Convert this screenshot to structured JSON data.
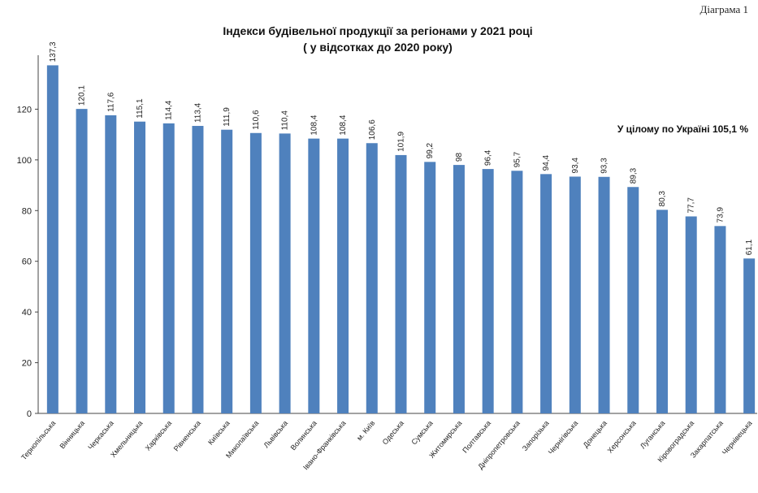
{
  "diagram_label": "Діаграма 1",
  "title_line1": "Індекси будівельної продукції за регіонами  у  2021 році",
  "title_line2": "( у відсотках до 2020 року)",
  "note": "У цілому по Україні  105,1 %",
  "colors": {
    "bar": "#4f81bd",
    "axis": "#444444"
  },
  "chart_data": {
    "type": "bar",
    "title": "Індекси будівельної продукції за регіонами  у  2021 році",
    "subtitle": "( у відсотках до 2020 року)",
    "ylim": [
      0,
      140
    ],
    "yticks": [
      0,
      20,
      40,
      60,
      80,
      100,
      120
    ],
    "grid": false,
    "categories": [
      "Тернопільська",
      "Вінницька",
      "Черкаська",
      "Хмельницька",
      "Харківська",
      "Рівненська",
      "Київська",
      "Миколаївська",
      "Львівська",
      "Волинська",
      "Івано-Франківська",
      "м. Київ",
      "Одеська",
      "Сумська",
      "Житомирська",
      "Полтавська",
      "Дніпропетровська",
      "Запорізька",
      "Чернігівська",
      "Донецька",
      "Херсонська",
      "Луганська",
      "Кіровоградська",
      "Закарпатська",
      "Чернівецька"
    ],
    "values": [
      137.3,
      120.1,
      117.6,
      115.1,
      114.4,
      113.4,
      111.9,
      110.6,
      110.4,
      108.4,
      108.4,
      106.6,
      101.9,
      99.2,
      98,
      96.4,
      95.7,
      94.4,
      93.4,
      93.3,
      89.3,
      80.3,
      77.7,
      73.9,
      61.1
    ],
    "value_labels": [
      "137,3",
      "120,1",
      "117,6",
      "115,1",
      "114,4",
      "113,4",
      "111,9",
      "110,6",
      "110,4",
      "108,4",
      "108,4",
      "106,6",
      "101,9",
      "99,2",
      "98",
      "96,4",
      "95,7",
      "94,4",
      "93,4",
      "93,3",
      "89,3",
      "80,3",
      "77,7",
      "73,9",
      "61,1"
    ]
  }
}
